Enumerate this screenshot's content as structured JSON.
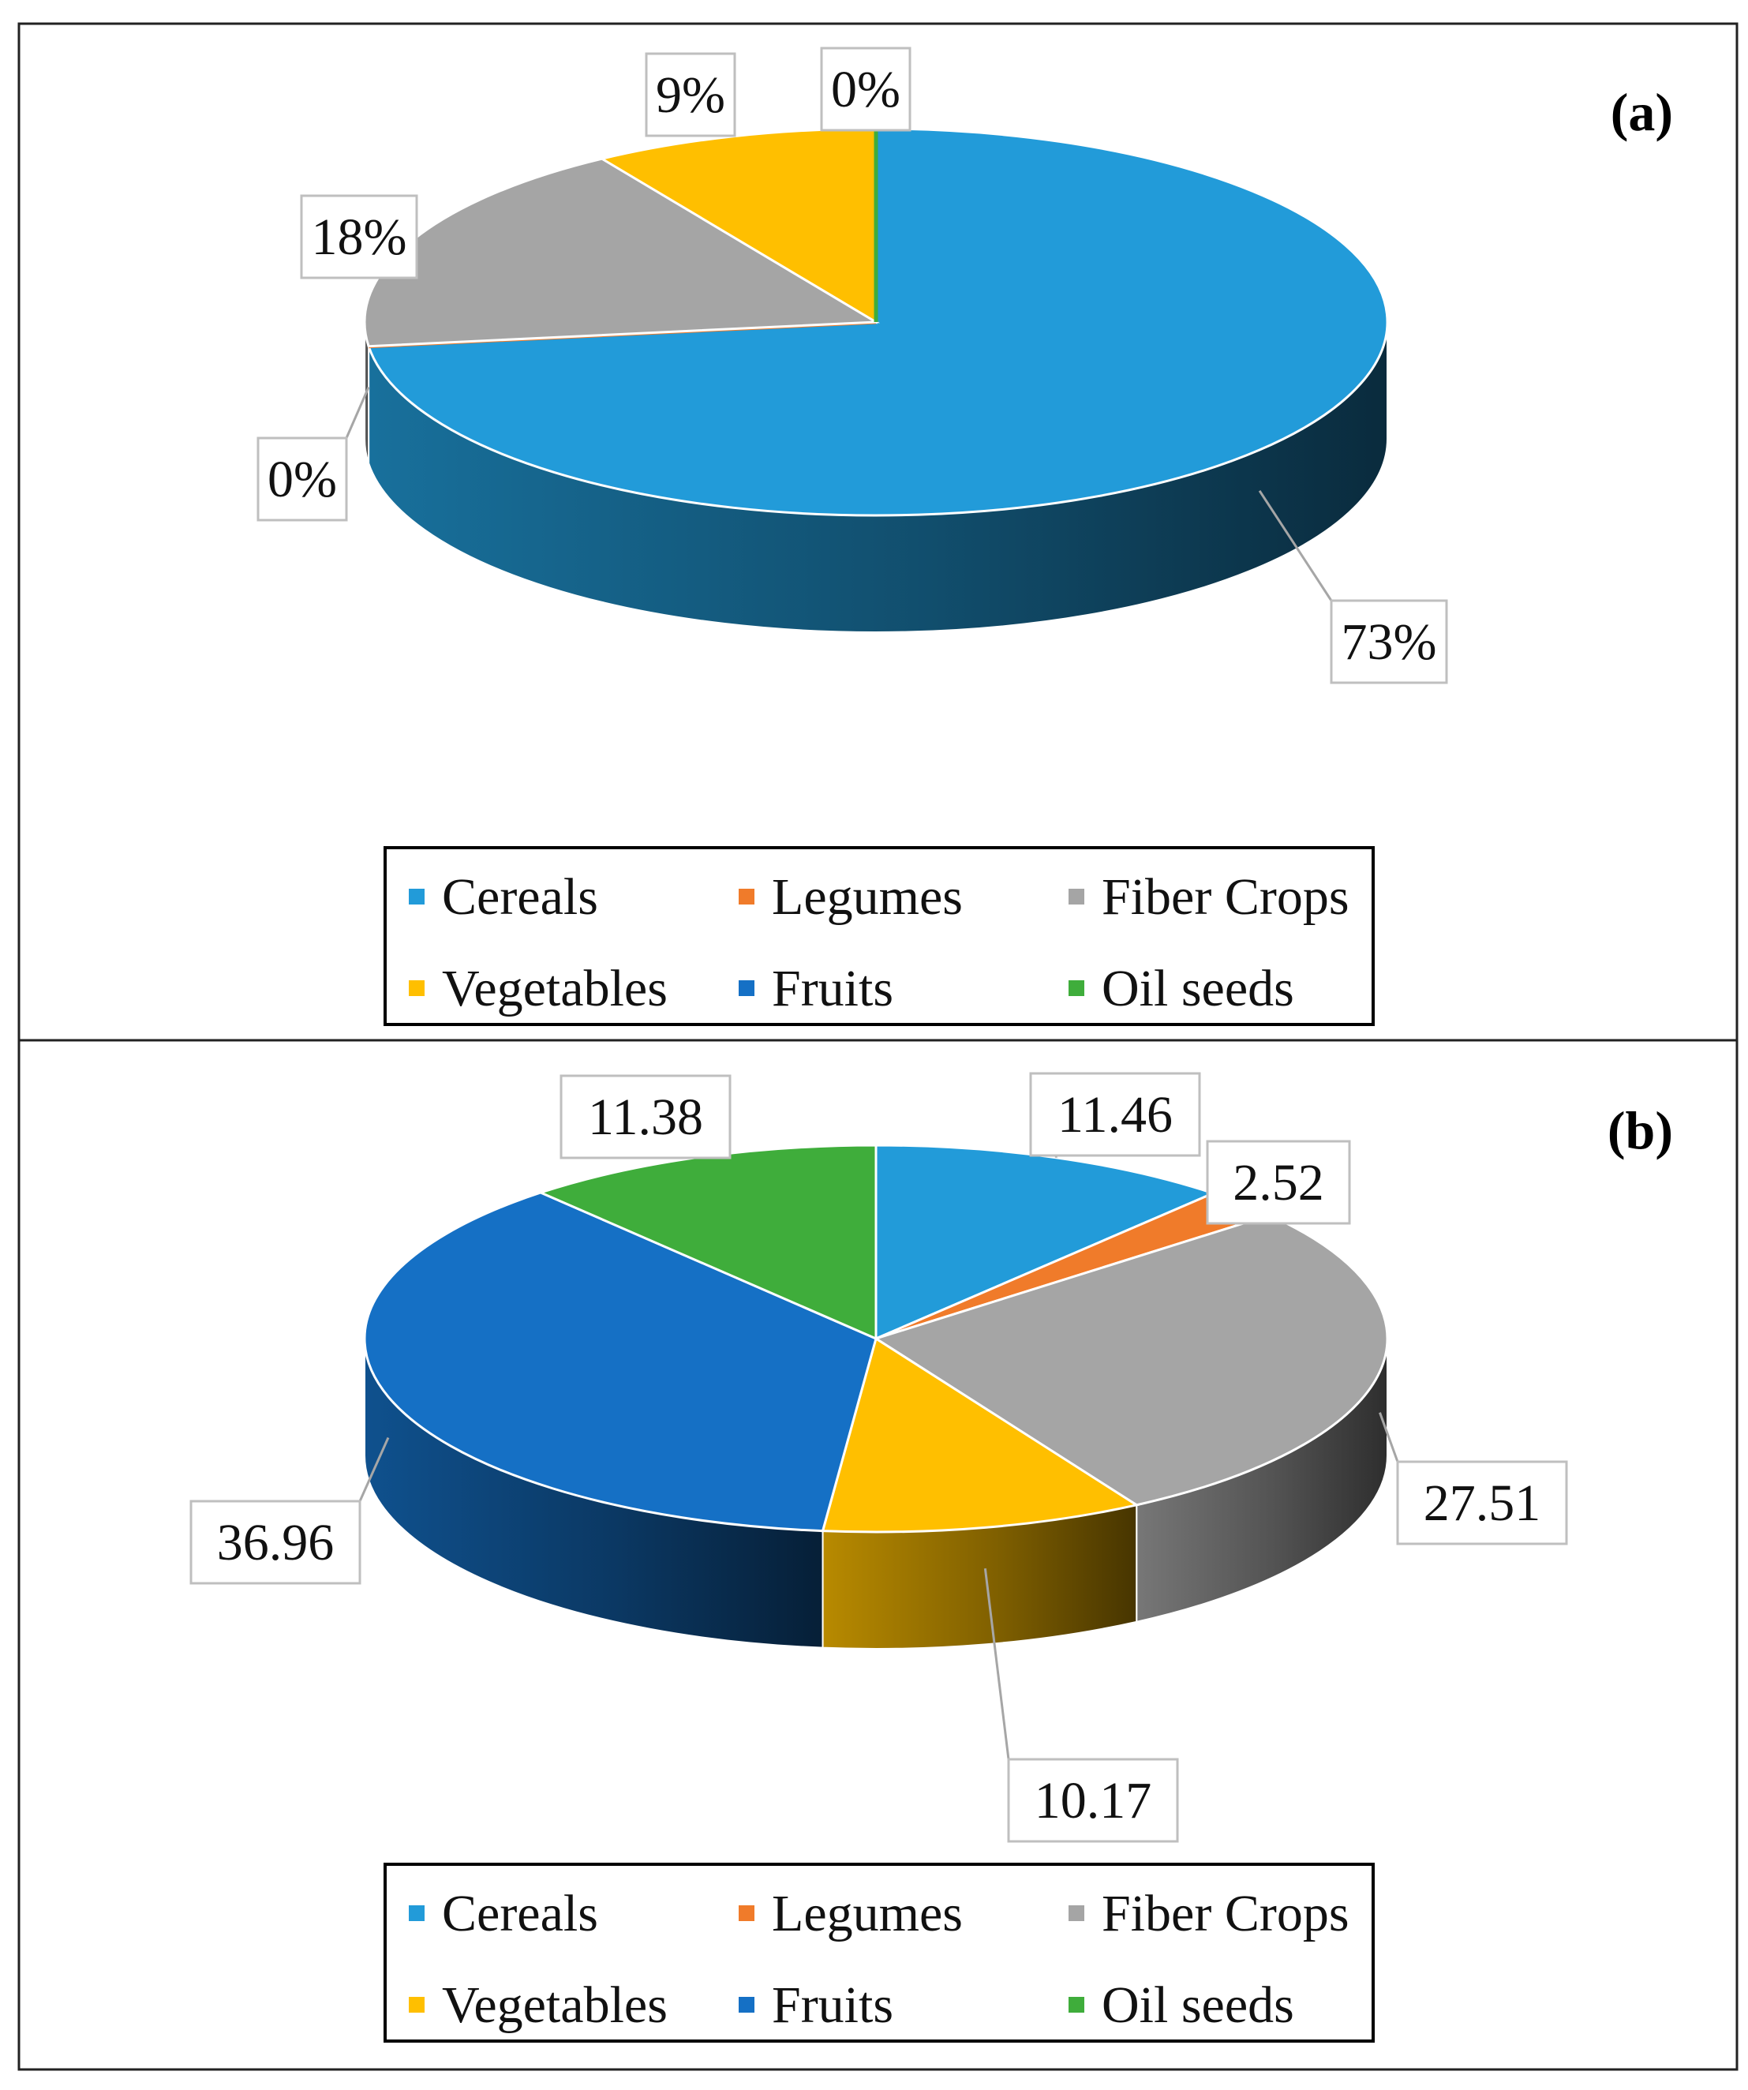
{
  "chart_data": [
    {
      "type": "pie",
      "panel_label": "(a)",
      "start": 0,
      "categories": [
        "Cereals",
        "Legumes",
        "Fiber Crops",
        "Vegetables",
        "Fruits",
        "Oil seeds"
      ],
      "values": [
        73,
        0,
        18,
        9,
        0,
        0
      ],
      "data_labels": [
        "73%",
        "0%",
        "18%",
        "9%",
        "0%",
        "0%"
      ],
      "legend_position": "bottom"
    },
    {
      "type": "pie",
      "panel_label": "(b)",
      "start": 0,
      "categories": [
        "Cereals",
        "Legumes",
        "Fiber Crops",
        "Vegetables",
        "Fruits",
        "Oil seeds"
      ],
      "values": [
        11.46,
        2.52,
        27.51,
        10.17,
        36.96,
        11.38
      ],
      "data_labels": [
        "11.46",
        "2.52",
        "27.51",
        "10.17",
        "36.96",
        "11.38"
      ],
      "legend_position": "bottom"
    }
  ],
  "series_colors": [
    "#229bd9",
    "#f07b2a",
    "#a5a5a5",
    "#ffbf00",
    "#1570c5",
    "#3fad3b"
  ]
}
